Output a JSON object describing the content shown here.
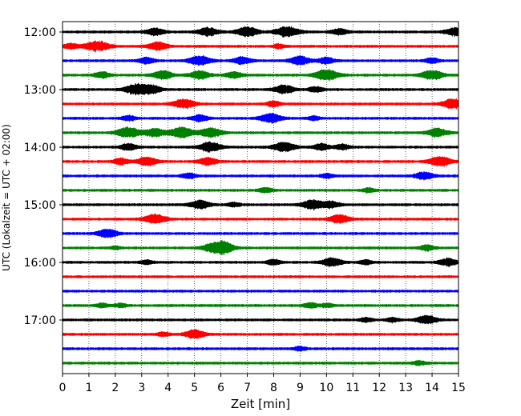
{
  "chart_data": {
    "type": "line",
    "subtype": "seismogram-helicorder",
    "xlabel": "Zeit  [min]",
    "ylabel": "UTC (Lokalzeit = UTC + 02:00)",
    "xlim": [
      0,
      15
    ],
    "x_ticks": [
      "0",
      "1",
      "2",
      "3",
      "4",
      "5",
      "6",
      "7",
      "8",
      "9",
      "10",
      "11",
      "12",
      "13",
      "14",
      "15"
    ],
    "y_ticks": [
      "12:00",
      "13:00",
      "14:00",
      "15:00",
      "16:00",
      "17:00"
    ],
    "vertical_grid": true,
    "grid_style": "dotted",
    "trace_colors": [
      "#000000",
      "#ff0000",
      "#0000ff",
      "#008000"
    ],
    "traces": [
      {
        "start": "12:00",
        "color": "#000000",
        "events": [
          [
            3.5,
            0.7
          ],
          [
            5.5,
            0.8
          ],
          [
            7,
            0.9
          ],
          [
            8.5,
            1.0
          ],
          [
            10.5,
            0.6
          ],
          [
            14.9,
            0.8
          ]
        ]
      },
      {
        "start": "12:15",
        "color": "#ff0000",
        "events": [
          [
            0.3,
            0.5
          ],
          [
            1.3,
            1.0
          ],
          [
            3.6,
            0.8
          ],
          [
            8.2,
            0.4
          ]
        ]
      },
      {
        "start": "12:30",
        "color": "#0000ff",
        "events": [
          [
            3.2,
            0.6
          ],
          [
            5.2,
            0.9
          ],
          [
            6.8,
            0.7
          ],
          [
            9,
            0.8
          ],
          [
            10,
            0.6
          ],
          [
            14,
            0.5
          ]
        ]
      },
      {
        "start": "12:45",
        "color": "#008000",
        "events": [
          [
            1.5,
            0.6
          ],
          [
            3.8,
            0.8
          ],
          [
            5.2,
            0.8
          ],
          [
            6.5,
            0.6
          ],
          [
            10,
            1.0
          ],
          [
            14,
            0.9
          ]
        ]
      },
      {
        "start": "13:00",
        "color": "#000000",
        "events": [
          [
            2.8,
            1.0
          ],
          [
            3.4,
            0.7
          ],
          [
            8.4,
            0.8
          ],
          [
            9.6,
            0.5
          ]
        ]
      },
      {
        "start": "13:15",
        "color": "#ff0000",
        "events": [
          [
            4.6,
            0.9
          ],
          [
            8,
            0.5
          ],
          [
            14.8,
            0.9
          ]
        ]
      },
      {
        "start": "13:30",
        "color": "#0000ff",
        "events": [
          [
            2.5,
            0.5
          ],
          [
            5.2,
            0.6
          ],
          [
            7.9,
            0.9
          ],
          [
            9.5,
            0.4
          ]
        ]
      },
      {
        "start": "13:45",
        "color": "#008000",
        "events": [
          [
            2.5,
            1.0
          ],
          [
            3.5,
            0.8
          ],
          [
            4.5,
            1.0
          ],
          [
            5.6,
            0.9
          ],
          [
            14.2,
            0.8
          ]
        ]
      },
      {
        "start": "14:00",
        "color": "#000000",
        "events": [
          [
            2.5,
            0.6
          ],
          [
            5.6,
            0.9
          ],
          [
            8.4,
            0.9
          ],
          [
            9.8,
            0.6
          ],
          [
            10.6,
            0.5
          ]
        ]
      },
      {
        "start": "14:15",
        "color": "#ff0000",
        "events": [
          [
            2.2,
            0.6
          ],
          [
            3.2,
            0.8
          ],
          [
            5.5,
            0.7
          ],
          [
            14.3,
            0.9
          ]
        ]
      },
      {
        "start": "14:30",
        "color": "#0000ff",
        "events": [
          [
            4.8,
            0.5
          ],
          [
            10,
            0.4
          ],
          [
            13.7,
            0.7
          ]
        ]
      },
      {
        "start": "14:45",
        "color": "#008000",
        "events": [
          [
            7.7,
            0.5
          ],
          [
            11.6,
            0.4
          ]
        ]
      },
      {
        "start": "15:00",
        "color": "#000000",
        "events": [
          [
            5.2,
            0.8
          ],
          [
            6.5,
            0.4
          ],
          [
            9.5,
            0.9
          ],
          [
            10.2,
            0.6
          ]
        ]
      },
      {
        "start": "15:15",
        "color": "#ff0000",
        "events": [
          [
            3.5,
            0.9
          ],
          [
            10.5,
            0.8
          ]
        ]
      },
      {
        "start": "15:30",
        "color": "#0000ff",
        "events": [
          [
            1.7,
            0.8
          ]
        ]
      },
      {
        "start": "15:45",
        "color": "#008000",
        "events": [
          [
            2,
            0.3
          ],
          [
            5.8,
            1.0
          ],
          [
            6.2,
            0.7
          ],
          [
            13.8,
            0.5
          ]
        ]
      },
      {
        "start": "16:00",
        "color": "#000000",
        "events": [
          [
            3.2,
            0.4
          ],
          [
            8,
            0.5
          ],
          [
            10.2,
            0.8
          ],
          [
            11.5,
            0.4
          ],
          [
            14.6,
            0.7
          ]
        ]
      },
      {
        "start": "16:15",
        "color": "#ff0000",
        "events": []
      },
      {
        "start": "16:30",
        "color": "#0000ff",
        "events": []
      },
      {
        "start": "16:45",
        "color": "#008000",
        "events": [
          [
            1.5,
            0.4
          ],
          [
            2.2,
            0.4
          ],
          [
            9.4,
            0.5
          ],
          [
            10,
            0.4
          ]
        ]
      },
      {
        "start": "17:00",
        "color": "#000000",
        "events": [
          [
            11.5,
            0.4
          ],
          [
            12.5,
            0.4
          ],
          [
            13.8,
            0.8
          ]
        ]
      },
      {
        "start": "17:15",
        "color": "#ff0000",
        "events": [
          [
            3.8,
            0.4
          ],
          [
            5,
            0.8
          ]
        ]
      },
      {
        "start": "17:30",
        "color": "#0000ff",
        "events": [
          [
            9,
            0.4
          ]
        ]
      },
      {
        "start": "17:45",
        "color": "#008000",
        "events": [
          [
            13.5,
            0.4
          ]
        ]
      }
    ]
  }
}
